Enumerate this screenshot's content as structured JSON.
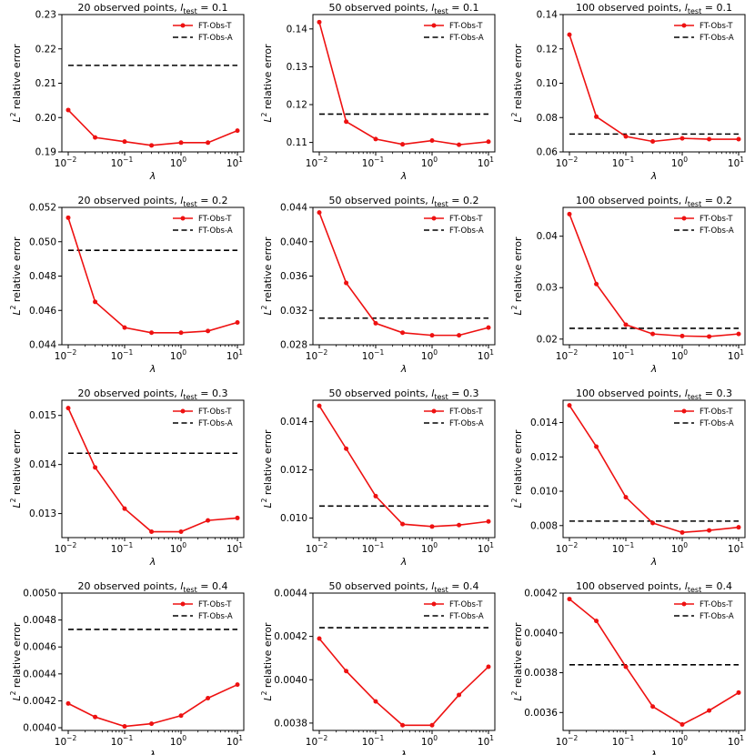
{
  "figure": {
    "xlabel": "λ",
    "ylabel": "relative error",
    "x_ticks": [
      {
        "value": 0.01,
        "label": "10",
        "exp": "−2"
      },
      {
        "value": 0.1,
        "label": "10",
        "exp": "−1"
      },
      {
        "value": 1,
        "label": "10",
        "exp": "0"
      },
      {
        "value": 10,
        "label": "10",
        "exp": "1"
      }
    ],
    "legend": {
      "t": "FT-Obs-T",
      "a": "FT-Obs-A"
    },
    "colors": {
      "t": "#ee1111",
      "a": "#000000"
    }
  },
  "chart_data": [
    {
      "type": "line",
      "title": "20 observed points, l_test = 0.1",
      "title_prefix": "20 observed points, ",
      "l_test": "0.1",
      "x": [
        0.01,
        0.03,
        0.1,
        0.3,
        1,
        3,
        10
      ],
      "yscale": "linear",
      "ylim": [
        0.19,
        0.23
      ],
      "yticks": [
        0.19,
        0.2,
        0.21,
        0.22,
        0.23
      ],
      "ytick_labels": [
        "0.19",
        "0.20",
        "0.21",
        "0.22",
        "0.23"
      ],
      "series": [
        {
          "name": "FT-Obs-T",
          "values": [
            0.2022,
            0.1942,
            0.193,
            0.1919,
            0.1927,
            0.1927,
            0.1962
          ]
        },
        {
          "name": "FT-Obs-A",
          "values": [
            0.2152,
            0.2152,
            0.2152,
            0.2152,
            0.2152,
            0.2152,
            0.2152
          ]
        }
      ]
    },
    {
      "type": "line",
      "title": "50 observed points, l_test = 0.1",
      "title_prefix": "50 observed points, ",
      "l_test": "0.1",
      "x": [
        0.01,
        0.03,
        0.1,
        0.3,
        1,
        3,
        10
      ],
      "yscale": "linear",
      "ylim": [
        0.1075,
        0.1438
      ],
      "yticks": [
        0.11,
        0.12,
        0.13,
        0.14
      ],
      "ytick_labels": [
        "0.11",
        "0.12",
        "0.13",
        "0.14"
      ],
      "series": [
        {
          "name": "FT-Obs-T",
          "values": [
            0.1418,
            0.1155,
            0.1109,
            0.1095,
            0.1105,
            0.1094,
            0.1102
          ]
        },
        {
          "name": "FT-Obs-A",
          "values": [
            0.1175,
            0.1175,
            0.1175,
            0.1175,
            0.1175,
            0.1175,
            0.1175
          ]
        }
      ]
    },
    {
      "type": "line",
      "title": "100 observed points, l_test = 0.1",
      "title_prefix": "100 observed points, ",
      "l_test": "0.1",
      "x": [
        0.01,
        0.03,
        0.1,
        0.3,
        1,
        3,
        10
      ],
      "yscale": "linear",
      "ylim": [
        0.06,
        0.14
      ],
      "yticks": [
        0.06,
        0.08,
        0.1,
        0.12,
        0.14
      ],
      "ytick_labels": [
        "0.06",
        "0.08",
        "0.10",
        "0.12",
        "0.14"
      ],
      "series": [
        {
          "name": "FT-Obs-T",
          "values": [
            0.1283,
            0.0805,
            0.069,
            0.0661,
            0.0679,
            0.0674,
            0.0674
          ]
        },
        {
          "name": "FT-Obs-A",
          "values": [
            0.0704,
            0.0704,
            0.0704,
            0.0704,
            0.0704,
            0.0704,
            0.0704
          ]
        }
      ]
    },
    {
      "type": "line",
      "title": "20 observed points, l_test = 0.2",
      "title_prefix": "20 observed points, ",
      "l_test": "0.2",
      "x": [
        0.01,
        0.03,
        0.1,
        0.3,
        1,
        3,
        10
      ],
      "yscale": "linear",
      "ylim": [
        0.044,
        0.052
      ],
      "yticks": [
        0.044,
        0.046,
        0.048,
        0.05,
        0.052
      ],
      "ytick_labels": [
        "0.044",
        "0.046",
        "0.048",
        "0.050",
        "0.052"
      ],
      "series": [
        {
          "name": "FT-Obs-T",
          "values": [
            0.0514,
            0.0465,
            0.045,
            0.0447,
            0.0447,
            0.0448,
            0.0453
          ]
        },
        {
          "name": "FT-Obs-A",
          "values": [
            0.0495,
            0.0495,
            0.0495,
            0.0495,
            0.0495,
            0.0495,
            0.0495
          ]
        }
      ]
    },
    {
      "type": "line",
      "title": "50 observed points, l_test = 0.2",
      "title_prefix": "50 observed points, ",
      "l_test": "0.2",
      "x": [
        0.01,
        0.03,
        0.1,
        0.3,
        1,
        3,
        10
      ],
      "yscale": "linear",
      "ylim": [
        0.028,
        0.044
      ],
      "yticks": [
        0.028,
        0.032,
        0.036,
        0.04,
        0.044
      ],
      "ytick_labels": [
        "0.028",
        "0.032",
        "0.036",
        "0.040",
        "0.044"
      ],
      "series": [
        {
          "name": "FT-Obs-T",
          "values": [
            0.0434,
            0.0352,
            0.0305,
            0.0294,
            0.0291,
            0.0291,
            0.03
          ]
        },
        {
          "name": "FT-Obs-A",
          "values": [
            0.0311,
            0.0311,
            0.0311,
            0.0311,
            0.0311,
            0.0311,
            0.0311
          ]
        }
      ]
    },
    {
      "type": "line",
      "title": "100 observed points, l_test = 0.2",
      "title_prefix": "100 observed points, ",
      "l_test": "0.2",
      "x": [
        0.01,
        0.03,
        0.1,
        0.3,
        1,
        3,
        10
      ],
      "yscale": "linear",
      "ylim": [
        0.0189,
        0.0456
      ],
      "yticks": [
        0.02,
        0.03,
        0.04
      ],
      "ytick_labels": [
        "0.02",
        "0.03",
        "0.04"
      ],
      "series": [
        {
          "name": "FT-Obs-T",
          "values": [
            0.0443,
            0.0307,
            0.0228,
            0.021,
            0.0206,
            0.0205,
            0.021
          ]
        },
        {
          "name": "FT-Obs-A",
          "values": [
            0.0221,
            0.0221,
            0.0221,
            0.0221,
            0.0221,
            0.0221,
            0.0221
          ]
        }
      ]
    },
    {
      "type": "line",
      "title": "20 observed points, l_test = 0.3",
      "title_prefix": "20 observed points, ",
      "l_test": "0.3",
      "x": [
        0.01,
        0.03,
        0.1,
        0.3,
        1,
        3,
        10
      ],
      "yscale": "linear",
      "ylim": [
        0.01251,
        0.01531
      ],
      "yticks": [
        0.013,
        0.014,
        0.015
      ],
      "ytick_labels": [
        "0.013",
        "0.014",
        "0.015"
      ],
      "series": [
        {
          "name": "FT-Obs-T",
          "values": [
            0.01515,
            0.01394,
            0.0131,
            0.01263,
            0.01263,
            0.01286,
            0.01291
          ]
        },
        {
          "name": "FT-Obs-A",
          "values": [
            0.01423,
            0.01423,
            0.01423,
            0.01423,
            0.01423,
            0.01423,
            0.01423
          ]
        }
      ]
    },
    {
      "type": "line",
      "title": "50 observed points, l_test = 0.3",
      "title_prefix": "50 observed points, ",
      "l_test": "0.3",
      "x": [
        0.01,
        0.03,
        0.1,
        0.3,
        1,
        3,
        10
      ],
      "yscale": "linear",
      "ylim": [
        0.00919,
        0.01489
      ],
      "yticks": [
        0.01,
        0.012,
        0.014
      ],
      "ytick_labels": [
        "0.010",
        "0.012",
        "0.014"
      ],
      "series": [
        {
          "name": "FT-Obs-T",
          "values": [
            0.01466,
            0.01288,
            0.01091,
            0.00975,
            0.00965,
            0.00971,
            0.00986
          ]
        },
        {
          "name": "FT-Obs-A",
          "values": [
            0.0105,
            0.0105,
            0.0105,
            0.0105,
            0.0105,
            0.0105,
            0.0105
          ]
        }
      ]
    },
    {
      "type": "line",
      "title": "100 observed points, l_test = 0.3",
      "title_prefix": "100 observed points, ",
      "l_test": "0.3",
      "x": [
        0.01,
        0.03,
        0.1,
        0.3,
        1,
        3,
        10
      ],
      "yscale": "linear",
      "ylim": [
        0.0073,
        0.0153
      ],
      "yticks": [
        0.008,
        0.01,
        0.012,
        0.014
      ],
      "ytick_labels": [
        "0.008",
        "0.010",
        "0.012",
        "0.014"
      ],
      "series": [
        {
          "name": "FT-Obs-T",
          "values": [
            0.015,
            0.0126,
            0.00965,
            0.00815,
            0.0076,
            0.00772,
            0.0079
          ]
        },
        {
          "name": "FT-Obs-A",
          "values": [
            0.00826,
            0.00826,
            0.00826,
            0.00826,
            0.00826,
            0.00826,
            0.00826
          ]
        }
      ]
    },
    {
      "type": "line",
      "title": "20 observed points, l_test = 0.4",
      "title_prefix": "20 observed points, ",
      "l_test": "0.4",
      "x": [
        0.01,
        0.03,
        0.1,
        0.3,
        1,
        3,
        10
      ],
      "yscale": "linear",
      "ylim": [
        0.00398,
        0.005
      ],
      "yticks": [
        0.004,
        0.0042,
        0.0044,
        0.0046,
        0.0048,
        0.005
      ],
      "ytick_labels": [
        "0.0040",
        "0.0042",
        "0.0044",
        "0.0046",
        "0.0048",
        "0.0050"
      ],
      "series": [
        {
          "name": "FT-Obs-T",
          "values": [
            0.00418,
            0.00408,
            0.00401,
            0.00403,
            0.00409,
            0.00422,
            0.00432
          ]
        },
        {
          "name": "FT-Obs-A",
          "values": [
            0.00473,
            0.00473,
            0.00473,
            0.00473,
            0.00473,
            0.00473,
            0.00473
          ]
        }
      ]
    },
    {
      "type": "line",
      "title": "50 observed points, l_test = 0.4",
      "title_prefix": "50 observed points, ",
      "l_test": "0.4",
      "x": [
        0.01,
        0.03,
        0.1,
        0.3,
        1,
        3,
        10
      ],
      "yscale": "linear",
      "ylim": [
        0.003766,
        0.0044
      ],
      "yticks": [
        0.0038,
        0.004,
        0.0042,
        0.0044
      ],
      "ytick_labels": [
        "0.0038",
        "0.0040",
        "0.0042",
        "0.0044"
      ],
      "series": [
        {
          "name": "FT-Obs-T",
          "values": [
            0.00419,
            0.00404,
            0.0039,
            0.00379,
            0.00379,
            0.00393,
            0.00406
          ]
        },
        {
          "name": "FT-Obs-A",
          "values": [
            0.00424,
            0.00424,
            0.00424,
            0.00424,
            0.00424,
            0.00424,
            0.00424
          ]
        }
      ]
    },
    {
      "type": "line",
      "title": "100 observed points, l_test = 0.4",
      "title_prefix": "100 observed points, ",
      "l_test": "0.4",
      "x": [
        0.01,
        0.03,
        0.1,
        0.3,
        1,
        3,
        10
      ],
      "yscale": "linear",
      "ylim": [
        0.00351,
        0.0042
      ],
      "yticks": [
        0.0036,
        0.0038,
        0.004,
        0.0042
      ],
      "ytick_labels": [
        "0.0036",
        "0.0038",
        "0.0040",
        "0.0042"
      ],
      "series": [
        {
          "name": "FT-Obs-T",
          "values": [
            0.00417,
            0.00406,
            0.00383,
            0.00363,
            0.00354,
            0.00361,
            0.0037
          ]
        },
        {
          "name": "FT-Obs-A",
          "values": [
            0.00384,
            0.00384,
            0.00384,
            0.00384,
            0.00384,
            0.00384,
            0.00384
          ]
        }
      ]
    }
  ]
}
